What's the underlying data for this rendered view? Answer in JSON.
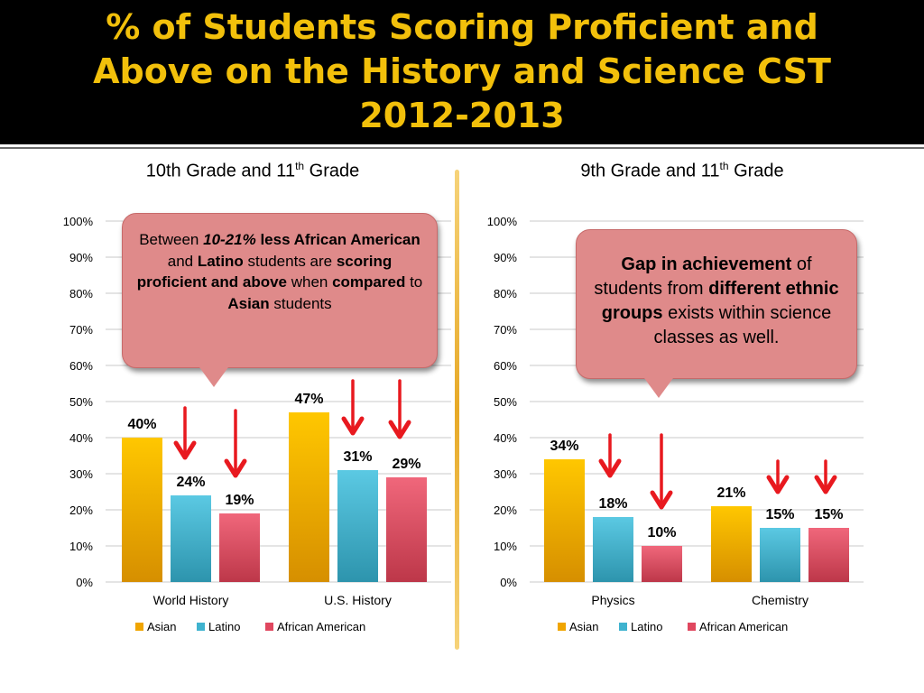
{
  "title": {
    "line1": "% of Students Scoring Proficient and",
    "line2": "Above on the History and Science CST",
    "line3": "2012-2013"
  },
  "colors": {
    "header_bg": "#000000",
    "title": "#f2c00b",
    "asian": "#f0a500",
    "latino": "#3fb3cf",
    "african_american": "#e0475f",
    "arrow": "#e8191f",
    "callout": "#df8a8a"
  },
  "chart_data": [
    {
      "type": "bar",
      "title": "10th Grade and 11",
      "title_sup": "th",
      "title_end": " Grade",
      "categories": [
        "World History",
        "U.S. History"
      ],
      "series": [
        {
          "name": "Asian",
          "values": [
            40,
            47
          ]
        },
        {
          "name": "Latino",
          "values": [
            24,
            31
          ]
        },
        {
          "name": "African American",
          "values": [
            19,
            29
          ]
        }
      ],
      "data_labels": [
        [
          "40%",
          "24%",
          "19%"
        ],
        [
          "47%",
          "31%",
          "29%"
        ]
      ],
      "ylim": [
        0,
        100
      ],
      "yticks": [
        "0%",
        "10%",
        "20%",
        "30%",
        "40%",
        "50%",
        "60%",
        "70%",
        "80%",
        "90%",
        "100%"
      ],
      "grid": true,
      "legend": "bottom"
    },
    {
      "type": "bar",
      "title": "9th Grade and 11",
      "title_sup": "th",
      "title_end": " Grade",
      "categories": [
        "Physics",
        "Chemistry"
      ],
      "series": [
        {
          "name": "Asian",
          "values": [
            34,
            21
          ]
        },
        {
          "name": "Latino",
          "values": [
            18,
            15
          ]
        },
        {
          "name": "African American",
          "values": [
            10,
            15
          ]
        }
      ],
      "data_labels": [
        [
          "34%",
          "18%",
          "10%"
        ],
        [
          "21%",
          "15%",
          "15%"
        ]
      ],
      "ylim": [
        0,
        100
      ],
      "yticks": [
        "0%",
        "10%",
        "20%",
        "30%",
        "40%",
        "50%",
        "60%",
        "70%",
        "80%",
        "90%",
        "100%"
      ],
      "grid": true,
      "legend": "bottom"
    }
  ],
  "callout_left": {
    "t1": "Between ",
    "t2": "10-21%",
    "t3": " less African American",
    "t4": " and ",
    "t5": "Latino",
    "t6": " students are ",
    "t7": "scoring proficient and above",
    "t8": " when ",
    "t9": "compared",
    "t10": " to ",
    "t11": "Asian",
    "t12": " students"
  },
  "callout_right": {
    "t1": "Gap in achievement",
    "t2": " of students from ",
    "t3": "different ethnic groups",
    "t4": " exists within science classes as well."
  }
}
